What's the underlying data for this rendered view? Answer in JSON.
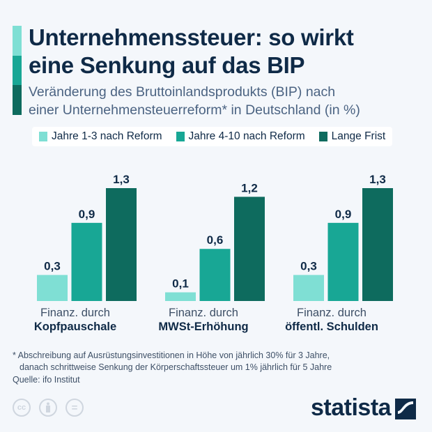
{
  "header": {
    "title_line1": "Unternehmenssteuer: so wirkt",
    "title_line2": "eine Senkung auf das BIP",
    "subtitle_line1": "Veränderung des Bruttoinlandsprodukts (BIP) nach",
    "subtitle_line2": "einer Unternehmensteuerreform* in Deutschland (in %)"
  },
  "colors": {
    "light": "#7fdfd4",
    "mid": "#18a795",
    "dark": "#0e6b5e",
    "text": "#0f2a47"
  },
  "chart_data": {
    "type": "bar",
    "categories": [
      {
        "line1": "Finanz. durch",
        "line2": "Kopfpauschale"
      },
      {
        "line1": "Finanz. durch",
        "line2": "MWSt-Erhöhung"
      },
      {
        "line1": "Finanz. durch",
        "line2": "öffentl. Schulden"
      }
    ],
    "series": [
      {
        "name": "Jahre 1-3 nach Reform",
        "values": [
          0.3,
          0.1,
          0.3
        ],
        "labels": [
          "0,3",
          "0,1",
          "0,3"
        ],
        "color": "#7fdfd4"
      },
      {
        "name": "Jahre 4-10 nach Reform",
        "values": [
          0.9,
          0.6,
          0.9
        ],
        "labels": [
          "0,9",
          "0,6",
          "0,9"
        ],
        "color": "#18a795"
      },
      {
        "name": "Lange Frist",
        "values": [
          1.3,
          1.2,
          1.3
        ],
        "labels": [
          "1,3",
          "1,2",
          "1,3"
        ],
        "color": "#0e6b5e"
      }
    ],
    "ylim": [
      0,
      1.3
    ],
    "grid": false,
    "legend": "top"
  },
  "footer": {
    "footnote_line1": "* Abschreibung auf Ausrüstungsinvestitionen in Höhe von jährlich 30% für 3 Jahre,",
    "footnote_line2": "danach schrittweise Senkung der Körperschaftssteuer um 1% jährlich für 5 Jahre",
    "source": "Quelle: ifo Institut",
    "cc_label": "cc",
    "equals_label": "=",
    "logo": "statista"
  }
}
